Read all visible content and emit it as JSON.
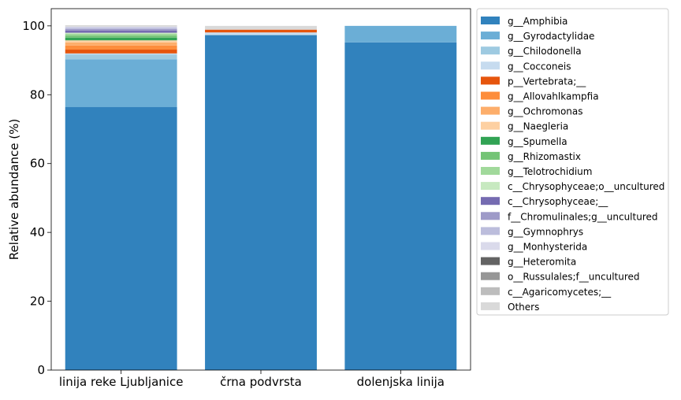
{
  "chart_data": {
    "type": "bar",
    "stacked": true,
    "ylabel": "Relative abundance (%)",
    "xlabel": "",
    "ylim": [
      0,
      105
    ],
    "yticks": [
      0,
      20,
      40,
      60,
      80,
      100
    ],
    "grid": false,
    "legend_position": "outside-right",
    "categories": [
      "linija reke Ljubljanice",
      "črna podvrsta",
      "dolenjska linija"
    ],
    "series": [
      {
        "name": "g__Amphibia",
        "color": "#3182bd",
        "values": [
          76.4,
          97.3,
          95.2
        ]
      },
      {
        "name": "g__Gyrodactylidae",
        "color": "#6baed6",
        "values": [
          13.9,
          0.0,
          4.8
        ]
      },
      {
        "name": "g__Chilodonella",
        "color": "#9ecae1",
        "values": [
          1.4,
          0.2,
          0.0
        ]
      },
      {
        "name": "g__Cocconeis",
        "color": "#c6dbef",
        "values": [
          0.3,
          0.6,
          0.0
        ]
      },
      {
        "name": "p__Vertebrata;__",
        "color": "#e6550d",
        "values": [
          1.1,
          0.8,
          0.0
        ]
      },
      {
        "name": "g__Allovahlkampfia",
        "color": "#fd8d3c",
        "values": [
          1.2,
          0.0,
          0.0
        ]
      },
      {
        "name": "g__Ochromonas",
        "color": "#fdae6b",
        "values": [
          0.9,
          0.0,
          0.0
        ]
      },
      {
        "name": "g__Naegleria",
        "color": "#fdd0a2",
        "values": [
          0.6,
          0.0,
          0.0
        ]
      },
      {
        "name": "g__Spumella",
        "color": "#31a354",
        "values": [
          0.8,
          0.0,
          0.0
        ]
      },
      {
        "name": "g__Rhizomastix",
        "color": "#74c476",
        "values": [
          0.6,
          0.0,
          0.0
        ]
      },
      {
        "name": "g__Telotrochidium",
        "color": "#a1d99b",
        "values": [
          0.5,
          0.0,
          0.0
        ]
      },
      {
        "name": "c__Chrysophyceae;o__uncultured",
        "color": "#c7e9c0",
        "values": [
          0.3,
          0.0,
          0.0
        ]
      },
      {
        "name": "c__Chrysophyceae;__",
        "color": "#756bb1",
        "values": [
          0.6,
          0.0,
          0.0
        ]
      },
      {
        "name": "f__Chromulinales;g__uncultured",
        "color": "#9e9ac8",
        "values": [
          0.5,
          0.0,
          0.0
        ]
      },
      {
        "name": "g__Gymnophrys",
        "color": "#bcbddc",
        "values": [
          0.4,
          0.0,
          0.0
        ]
      },
      {
        "name": "g__Monhysterida",
        "color": "#dadaeb",
        "values": [
          0.3,
          0.0,
          0.0
        ]
      },
      {
        "name": "g__Heteromita",
        "color": "#636363",
        "values": [
          0.0,
          0.0,
          0.0
        ]
      },
      {
        "name": "o__Russulales;f__uncultured",
        "color": "#969696",
        "values": [
          0.0,
          0.0,
          0.0
        ]
      },
      {
        "name": "c__Agaricomycetes;__",
        "color": "#bdbdbd",
        "values": [
          0.1,
          0.0,
          0.0
        ]
      },
      {
        "name": "Others",
        "color": "#d9d9d9",
        "values": [
          0.3,
          1.1,
          0.0
        ]
      }
    ]
  }
}
